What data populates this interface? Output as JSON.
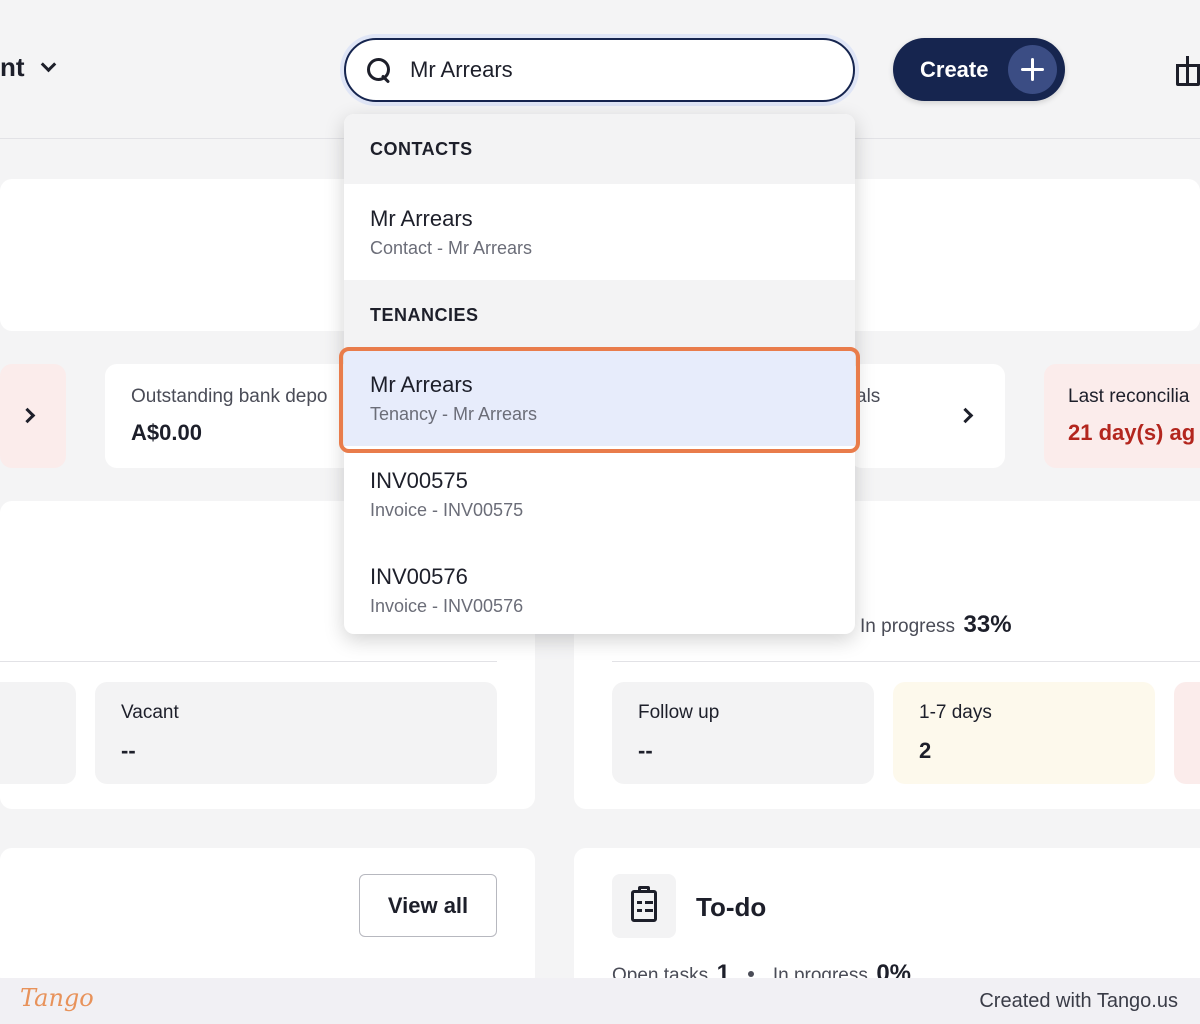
{
  "header": {
    "account_label": "nt",
    "search_value": "Mr Arrears",
    "create_label": "Create"
  },
  "stats": {
    "bank_deposits_title": "Outstanding bank depo",
    "bank_deposits_value": "A$0.00",
    "middle_title_fragment": "als",
    "last_reconcile_title": "Last reconcilia",
    "last_reconcile_value": "21 day(s) ag"
  },
  "occupancy": {
    "vacant_label": "Vacant",
    "vacant_value": "--"
  },
  "arrears": {
    "in_progress_label": "In progress",
    "in_progress_value": "33%",
    "follow_up_label": "Follow up",
    "follow_up_value": "--",
    "days_label": "1-7 days",
    "days_value": "2"
  },
  "list_panel": {
    "view_all_label": "View all"
  },
  "todo": {
    "title": "To-do",
    "open_tasks_label": "Open tasks",
    "open_tasks_value": "1",
    "in_progress_label": "In progress",
    "in_progress_value": "0%"
  },
  "dropdown": {
    "contacts_header": "CONTACTS",
    "tenancies_header": "TENANCIES",
    "items": [
      {
        "name": "Mr Arrears",
        "sub": "Contact - Mr Arrears"
      },
      {
        "name": "Mr Arrears",
        "sub": "Tenancy - Mr Arrears"
      },
      {
        "name": "INV00575",
        "sub": "Invoice - INV00575"
      },
      {
        "name": "INV00576",
        "sub": "Invoice - INV00576"
      }
    ]
  },
  "footer": {
    "logo_text": "Tango",
    "credit": "Created with Tango.us"
  },
  "colors": {
    "primary": "#16254f",
    "highlight_ring": "#e97c4b",
    "danger_text": "#b3261e"
  }
}
